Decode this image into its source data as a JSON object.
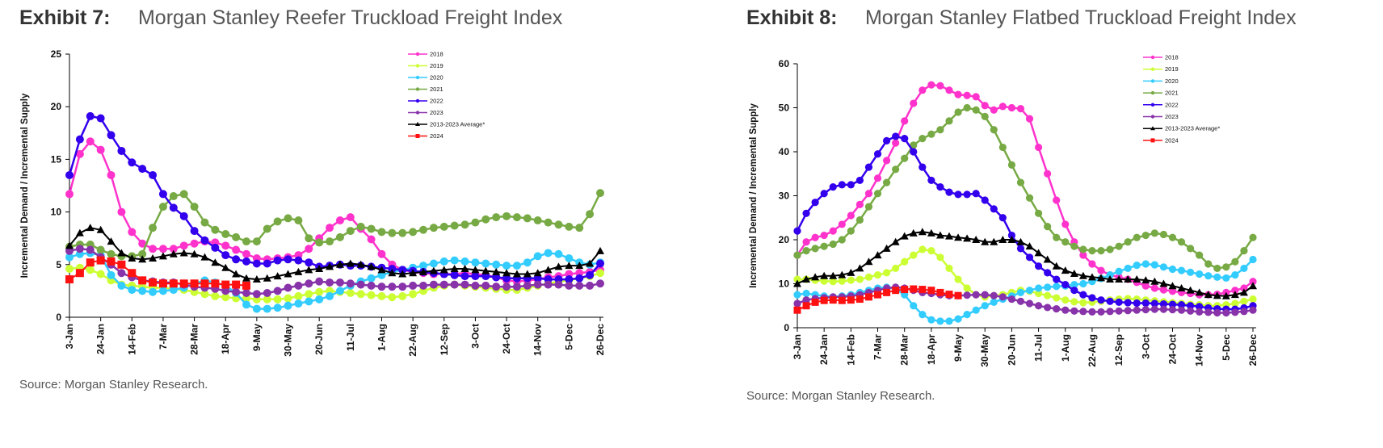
{
  "exhibits": [
    {
      "label": "Exhibit 7:",
      "title": "Morgan Stanley Reefer Truckload Freight Index",
      "source": "Source: Morgan Stanley Research."
    },
    {
      "label": "Exhibit 8:",
      "title": "Morgan Stanley Flatbed Truckload Freight Index",
      "source": "Source: Morgan Stanley Research."
    }
  ],
  "chart_data": [
    {
      "type": "line",
      "title": "Morgan Stanley Reefer Truckload Freight Index",
      "ylabel": "Incremental Demand / Incremental Supply",
      "xlabel": "",
      "ylim": [
        0,
        25
      ],
      "yticks": [
        0,
        5,
        10,
        15,
        20,
        25
      ],
      "xlim": [
        0,
        51
      ],
      "x_tick_labels": [
        "3-Jan",
        "24-Jan",
        "14-Feb",
        "7-Mar",
        "28-Mar",
        "18-Apr",
        "9-May",
        "30-May",
        "20-Jun",
        "11-Jul",
        "1-Aug",
        "22-Aug",
        "12-Sep",
        "3-Oct",
        "24-Oct",
        "14-Nov",
        "5-Dec",
        "26-Dec"
      ],
      "x_tick_positions": [
        0,
        3,
        6,
        9,
        12,
        15,
        18,
        21,
        24,
        27,
        30,
        33,
        36,
        39,
        42,
        45,
        48,
        51
      ],
      "grid": false,
      "legend": "top-right",
      "series": [
        {
          "name": "2018",
          "color": "#ff33cc",
          "marker": "circle",
          "values": [
            11.7,
            15.5,
            16.7,
            15.9,
            13.5,
            10.0,
            8.1,
            7.0,
            6.5,
            6.5,
            6.5,
            6.8,
            7.0,
            7.2,
            7.1,
            6.8,
            6.4,
            6.0,
            5.6,
            5.5,
            5.6,
            5.7,
            5.9,
            6.5,
            7.5,
            8.5,
            9.2,
            9.5,
            8.4,
            7.4,
            6.0,
            5.0,
            4.5,
            4.3,
            4.2,
            4.1,
            4.1,
            4.1,
            4.2,
            4.1,
            4.0,
            3.8,
            3.5,
            3.4,
            3.5,
            3.6,
            3.8,
            3.9,
            4.1,
            4.2,
            4.3,
            4.5
          ]
        },
        {
          "name": "2019",
          "color": "#ccff33",
          "marker": "circle",
          "values": [
            4.6,
            4.7,
            4.5,
            4.1,
            3.5,
            3.1,
            3.0,
            2.9,
            2.8,
            2.8,
            2.7,
            2.6,
            2.4,
            2.2,
            2.0,
            1.9,
            1.8,
            1.8,
            1.7,
            1.7,
            1.7,
            1.8,
            2.0,
            2.2,
            2.4,
            2.5,
            2.4,
            2.3,
            2.2,
            2.1,
            2.0,
            1.9,
            2.0,
            2.2,
            2.5,
            2.8,
            3.0,
            3.1,
            3.0,
            2.9,
            2.8,
            2.7,
            2.6,
            2.6,
            2.8,
            3.0,
            3.2,
            3.4,
            3.5,
            3.7,
            3.9,
            4.2
          ]
        },
        {
          "name": "2020",
          "color": "#33ccff",
          "marker": "circle",
          "values": [
            5.7,
            6.0,
            6.1,
            5.9,
            4.0,
            3.0,
            2.6,
            2.5,
            2.4,
            2.5,
            2.6,
            2.8,
            3.2,
            3.5,
            3.3,
            3.0,
            2.3,
            1.2,
            0.8,
            0.8,
            0.9,
            1.1,
            1.3,
            1.5,
            1.7,
            2.0,
            2.5,
            3.0,
            3.4,
            3.7,
            4.0,
            4.3,
            4.5,
            4.7,
            4.9,
            5.1,
            5.3,
            5.4,
            5.3,
            5.2,
            5.1,
            5.0,
            4.9,
            4.9,
            5.2,
            5.8,
            6.1,
            6.0,
            5.6,
            5.2,
            5.0,
            5.2
          ]
        },
        {
          "name": "2021",
          "color": "#77aa44",
          "marker": "circle",
          "values": [
            6.7,
            6.9,
            6.9,
            6.4,
            6.0,
            5.8,
            5.8,
            6.0,
            8.5,
            10.5,
            11.5,
            11.7,
            10.5,
            9.0,
            8.3,
            7.9,
            7.6,
            7.2,
            7.2,
            8.4,
            9.1,
            9.4,
            9.2,
            7.5,
            7.1,
            7.2,
            7.6,
            8.2,
            8.6,
            8.4,
            8.1,
            8.0,
            8.0,
            8.1,
            8.3,
            8.5,
            8.6,
            8.7,
            8.8,
            9.0,
            9.3,
            9.5,
            9.6,
            9.5,
            9.4,
            9.2,
            9.0,
            8.8,
            8.6,
            8.5,
            9.8,
            11.8
          ]
        },
        {
          "name": "2022",
          "color": "#3300ee",
          "marker": "circle",
          "values": [
            13.5,
            16.9,
            19.1,
            18.9,
            17.3,
            15.8,
            14.7,
            14.1,
            13.5,
            11.7,
            10.4,
            9.6,
            8.2,
            7.3,
            6.6,
            5.9,
            5.5,
            5.3,
            5.1,
            5.1,
            5.4,
            5.5,
            5.4,
            5.2,
            4.8,
            4.9,
            5.0,
            4.9,
            4.9,
            4.8,
            4.7,
            4.6,
            4.5,
            4.4,
            4.3,
            4.2,
            4.1,
            4.0,
            3.9,
            3.9,
            3.9,
            3.8,
            3.7,
            3.7,
            3.7,
            3.7,
            3.6,
            3.6,
            3.6,
            3.7,
            4.0,
            5.1
          ]
        },
        {
          "name": "2023",
          "color": "#8833aa",
          "marker": "circle",
          "values": [
            6.3,
            6.5,
            6.4,
            5.7,
            5.0,
            4.2,
            3.8,
            3.5,
            3.4,
            3.3,
            3.3,
            3.1,
            2.9,
            2.8,
            2.7,
            2.5,
            2.4,
            2.3,
            2.2,
            2.3,
            2.5,
            2.8,
            3.0,
            3.2,
            3.4,
            3.3,
            3.3,
            3.2,
            3.1,
            3.0,
            2.9,
            2.9,
            2.9,
            3.0,
            3.0,
            3.1,
            3.1,
            3.1,
            3.1,
            3.0,
            3.0,
            2.9,
            2.9,
            2.9,
            3.0,
            3.1,
            3.1,
            3.1,
            3.0,
            3.0,
            3.0,
            3.2
          ]
        },
        {
          "name": "2013-2023 Average*",
          "color": "#000000",
          "marker": "triangle",
          "values": [
            6.8,
            8.0,
            8.5,
            8.3,
            7.2,
            6.1,
            5.6,
            5.5,
            5.6,
            5.8,
            6.0,
            6.1,
            6.0,
            5.7,
            5.2,
            4.7,
            4.1,
            3.7,
            3.6,
            3.7,
            3.9,
            4.1,
            4.3,
            4.5,
            4.6,
            4.8,
            5.0,
            5.1,
            5.0,
            4.8,
            4.5,
            4.2,
            4.1,
            4.2,
            4.3,
            4.4,
            4.5,
            4.6,
            4.6,
            4.5,
            4.4,
            4.3,
            4.2,
            4.1,
            4.1,
            4.2,
            4.5,
            4.8,
            4.9,
            4.9,
            5.1,
            6.3
          ]
        },
        {
          "name": "2024",
          "color": "#ff1111",
          "marker": "square",
          "values": [
            3.6,
            4.2,
            5.2,
            5.4,
            5.3,
            5.0,
            4.2,
            3.5,
            3.3,
            3.2,
            3.2,
            3.2,
            3.2,
            3.2,
            3.2,
            3.1,
            3.1,
            3.0
          ]
        }
      ]
    },
    {
      "type": "line",
      "title": "Morgan Stanley Flatbed Truckload Freight Index",
      "ylabel": "Incremental Demand / Incremental Supply",
      "xlabel": "",
      "ylim": [
        0,
        60
      ],
      "yticks": [
        0,
        10,
        20,
        30,
        40,
        50,
        60
      ],
      "xlim": [
        0,
        51
      ],
      "x_tick_labels": [
        "3-Jan",
        "24-Jan",
        "14-Feb",
        "7-Mar",
        "28-Mar",
        "18-Apr",
        "9-May",
        "30-May",
        "20-Jun",
        "11-Jul",
        "1-Aug",
        "22-Aug",
        "12-Sep",
        "3-Oct",
        "24-Oct",
        "14-Nov",
        "5-Dec",
        "26-Dec"
      ],
      "x_tick_positions": [
        0,
        3,
        6,
        9,
        12,
        15,
        18,
        21,
        24,
        27,
        30,
        33,
        36,
        39,
        42,
        45,
        48,
        51
      ],
      "grid": false,
      "legend": "top-right",
      "series": [
        {
          "name": "2018",
          "color": "#ff33cc",
          "marker": "circle",
          "values": [
            16.5,
            19.5,
            20.5,
            21.0,
            22.0,
            23.5,
            25.5,
            28.0,
            30.5,
            34.0,
            38.0,
            42.0,
            47.0,
            51.0,
            54.0,
            55.2,
            55.0,
            54.0,
            53.0,
            52.8,
            52.5,
            50.5,
            49.5,
            50.3,
            50.0,
            49.8,
            47.5,
            41.0,
            35.0,
            29.0,
            23.5,
            19.5,
            16.5,
            14.5,
            13.0,
            12.0,
            11.5,
            11.0,
            10.3,
            9.5,
            9.0,
            8.6,
            8.3,
            8.0,
            7.8,
            7.5,
            7.5,
            7.6,
            8.0,
            8.5,
            9.0,
            10.5
          ]
        },
        {
          "name": "2019",
          "color": "#ccff33",
          "marker": "circle",
          "values": [
            11.0,
            11.0,
            10.8,
            10.6,
            10.5,
            10.6,
            10.8,
            11.0,
            11.5,
            12.0,
            12.5,
            13.5,
            15.0,
            16.5,
            17.8,
            17.5,
            16.0,
            13.5,
            11.0,
            9.0,
            7.5,
            7.0,
            7.3,
            7.5,
            8.0,
            8.5,
            8.3,
            7.8,
            7.3,
            6.8,
            6.3,
            5.9,
            5.7,
            5.8,
            6.0,
            6.3,
            6.5,
            6.6,
            6.5,
            6.3,
            6.1,
            5.9,
            5.7,
            5.5,
            5.3,
            5.2,
            5.0,
            5.0,
            5.2,
            5.5,
            6.0,
            6.5
          ]
        },
        {
          "name": "2020",
          "color": "#33ccff",
          "marker": "circle",
          "values": [
            7.5,
            7.8,
            7.5,
            7.2,
            7.0,
            7.2,
            7.5,
            8.0,
            8.5,
            9.0,
            9.2,
            8.8,
            7.5,
            5.0,
            3.0,
            1.8,
            1.5,
            1.5,
            2.0,
            3.0,
            4.0,
            5.0,
            5.8,
            6.5,
            7.2,
            8.0,
            8.5,
            9.0,
            9.2,
            9.4,
            9.5,
            9.8,
            10.0,
            10.5,
            11.2,
            12.0,
            12.8,
            13.5,
            14.2,
            14.5,
            14.3,
            13.8,
            13.3,
            13.0,
            12.6,
            12.2,
            11.8,
            11.5,
            11.3,
            12.0,
            13.5,
            15.5
          ]
        },
        {
          "name": "2021",
          "color": "#77aa44",
          "marker": "circle",
          "values": [
            16.5,
            17.5,
            18.0,
            18.5,
            19.0,
            20.0,
            22.0,
            24.5,
            27.5,
            30.5,
            33.0,
            36.0,
            38.5,
            41.5,
            43.0,
            44.0,
            45.0,
            47.0,
            49.0,
            50.0,
            49.5,
            48.0,
            45.0,
            41.0,
            37.0,
            33.0,
            29.5,
            26.0,
            23.0,
            20.5,
            19.5,
            18.5,
            17.8,
            17.5,
            17.5,
            17.8,
            18.5,
            19.5,
            20.5,
            21.0,
            21.5,
            21.2,
            20.5,
            19.5,
            18.0,
            16.5,
            14.5,
            13.5,
            13.8,
            15.0,
            17.5,
            20.5
          ]
        },
        {
          "name": "2022",
          "color": "#3300ee",
          "marker": "circle",
          "values": [
            22.0,
            26.0,
            28.5,
            30.5,
            32.0,
            32.5,
            32.5,
            33.5,
            36.5,
            39.5,
            42.5,
            43.5,
            43.0,
            40.0,
            36.5,
            33.5,
            32.0,
            30.8,
            30.3,
            30.3,
            30.5,
            29.0,
            27.0,
            25.0,
            21.0,
            18.0,
            16.0,
            14.0,
            12.5,
            11.0,
            9.8,
            8.5,
            7.5,
            6.8,
            6.3,
            6.0,
            5.8,
            5.7,
            5.6,
            5.6,
            5.5,
            5.4,
            5.3,
            5.2,
            5.0,
            4.8,
            4.5,
            4.3,
            4.2,
            4.2,
            4.5,
            5.0
          ]
        },
        {
          "name": "2023",
          "color": "#8833aa",
          "marker": "circle",
          "values": [
            5.5,
            6.3,
            6.6,
            6.8,
            7.0,
            7.0,
            7.2,
            7.5,
            8.0,
            8.5,
            9.0,
            9.2,
            9.0,
            8.5,
            8.0,
            7.8,
            7.5,
            7.3,
            7.3,
            7.4,
            7.5,
            7.5,
            7.3,
            7.0,
            6.5,
            6.0,
            5.5,
            5.0,
            4.6,
            4.3,
            4.0,
            3.8,
            3.7,
            3.6,
            3.6,
            3.7,
            3.8,
            3.9,
            4.0,
            4.1,
            4.2,
            4.2,
            4.1,
            4.0,
            3.8,
            3.6,
            3.5,
            3.4,
            3.4,
            3.5,
            3.7,
            4.0
          ]
        },
        {
          "name": "2013-2023 Average*",
          "color": "#000000",
          "marker": "triangle",
          "values": [
            10.0,
            11.0,
            11.5,
            11.8,
            11.8,
            12.0,
            12.5,
            13.5,
            15.0,
            16.5,
            18.0,
            19.5,
            20.8,
            21.5,
            21.8,
            21.5,
            21.0,
            20.8,
            20.5,
            20.3,
            20.0,
            19.5,
            19.5,
            20.0,
            20.0,
            19.5,
            18.5,
            17.0,
            15.5,
            14.0,
            13.0,
            12.3,
            11.8,
            11.5,
            11.3,
            11.0,
            11.0,
            11.0,
            11.0,
            10.8,
            10.5,
            10.0,
            9.5,
            9.0,
            8.5,
            8.0,
            7.5,
            7.3,
            7.2,
            7.5,
            8.0,
            9.5
          ]
        },
        {
          "name": "2024",
          "color": "#ff1111",
          "marker": "square",
          "values": [
            4.0,
            5.0,
            5.8,
            6.2,
            6.3,
            6.2,
            6.3,
            6.5,
            7.0,
            7.5,
            8.0,
            8.5,
            8.7,
            8.8,
            8.7,
            8.5,
            8.0,
            7.6,
            7.3
          ]
        }
      ]
    }
  ]
}
